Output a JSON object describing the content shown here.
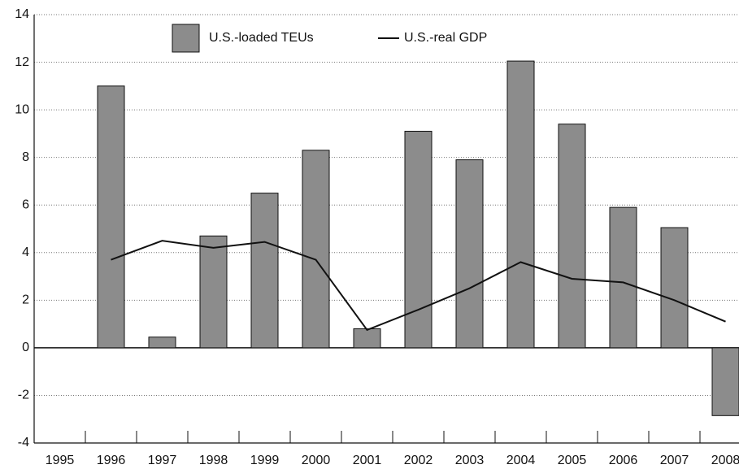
{
  "chart_data": {
    "type": "bar-line",
    "categories": [
      "1995",
      "1996",
      "1997",
      "1998",
      "1999",
      "2000",
      "2001",
      "2002",
      "2003",
      "2004",
      "2005",
      "2006",
      "2007",
      "2008"
    ],
    "series": [
      {
        "name": "U.S.-loaded TEUs",
        "type": "bar",
        "color": "#8c8c8c",
        "values": [
          null,
          11.0,
          0.45,
          4.7,
          6.5,
          8.3,
          0.8,
          9.1,
          7.9,
          12.05,
          9.4,
          5.9,
          5.05,
          -2.85
        ]
      },
      {
        "name": "U.S.-real GDP",
        "type": "line",
        "color": "#111111",
        "values": [
          null,
          3.7,
          4.5,
          4.2,
          4.45,
          3.7,
          0.75,
          1.6,
          2.5,
          3.6,
          2.9,
          2.75,
          2.0,
          1.1
        ]
      }
    ],
    "ylim": [
      -4,
      14
    ],
    "yticks": [
      -4,
      -2,
      0,
      2,
      4,
      6,
      8,
      10,
      12,
      14
    ],
    "grid": true,
    "legend": "top"
  }
}
